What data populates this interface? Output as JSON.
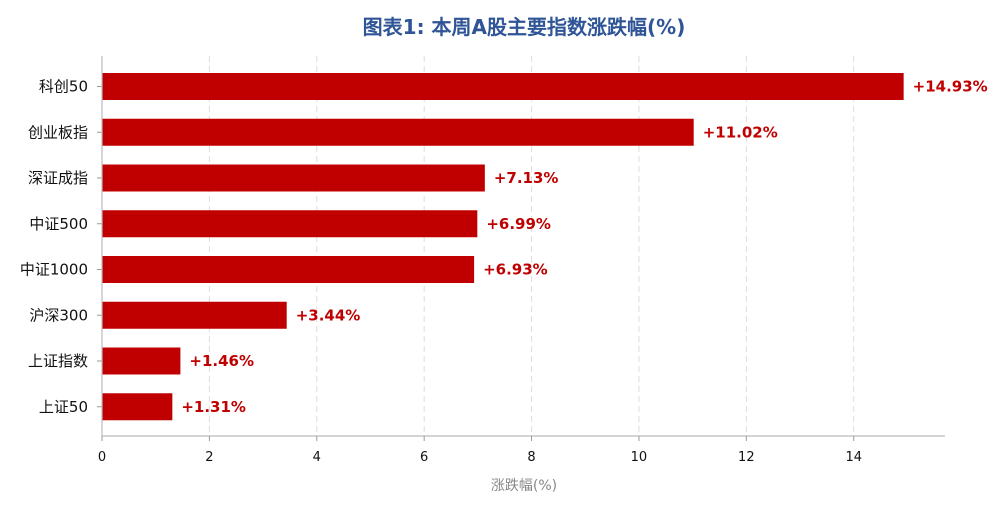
{
  "chart_data": {
    "type": "bar",
    "orientation": "horizontal",
    "title": "图表1: 本周A股主要指数涨跌幅(%)",
    "xlabel": "涨跌幅(%)",
    "ylabel": "",
    "categories": [
      "科创50",
      "创业板指",
      "深证成指",
      "中证500",
      "中证1000",
      "沪深300",
      "上证指数",
      "上证50"
    ],
    "values": [
      14.93,
      11.02,
      7.13,
      6.99,
      6.93,
      3.44,
      1.46,
      1.31
    ],
    "value_labels": [
      "+14.93%",
      "+11.02%",
      "+7.13%",
      "+6.99%",
      "+6.93%",
      "+3.44%",
      "+1.46%",
      "+1.31%"
    ],
    "xlim": [
      0,
      15.7
    ],
    "xticks": [
      0,
      2,
      4,
      6,
      8,
      10,
      12,
      14
    ],
    "xtick_labels": [
      "0",
      "2",
      "4",
      "6",
      "8",
      "10",
      "12",
      "14"
    ],
    "grid": "vertical-dashed",
    "legend": "none",
    "colors": {
      "bar": "#c00000",
      "value_label": "#c00000",
      "title": "#2f5597",
      "grid": "#dddddd",
      "axis": "#bbbbbb"
    }
  }
}
